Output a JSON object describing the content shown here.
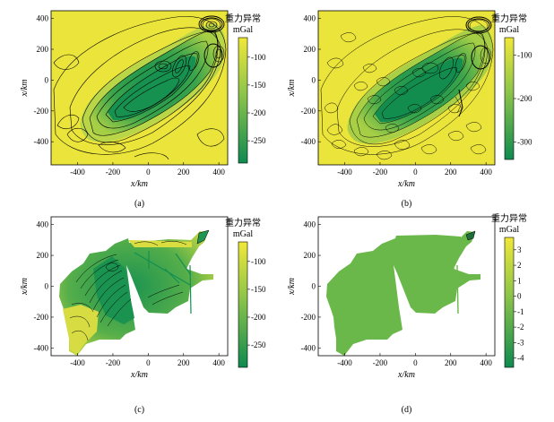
{
  "colors": {
    "high": "#ebe43a",
    "low": "#138f52",
    "mid": "#6bb84a",
    "frame": "#000000"
  },
  "chart_data": [
    {
      "type": "heatmap",
      "panel_label": "(a)",
      "xlabel": "x/km",
      "ylabel": "x/km",
      "xticks": [
        "-400",
        "-200",
        "0",
        "200",
        "400"
      ],
      "yticks": [
        "400",
        "200",
        "0",
        "-200",
        "-400"
      ],
      "xlim": [
        -550,
        450
      ],
      "ylim": [
        -550,
        450
      ],
      "colorbar": {
        "title": "重力异常",
        "unit": "mGal",
        "ticks": [
          "-100",
          "-150",
          "-200",
          "-250"
        ],
        "range": [
          -290,
          -65
        ]
      }
    },
    {
      "type": "heatmap",
      "panel_label": "(b)",
      "xlabel": "x/km",
      "ylabel": "x/km",
      "xticks": [
        "-400",
        "-200",
        "0",
        "200",
        "400"
      ],
      "yticks": [
        "400",
        "200",
        "0",
        "-200",
        "-400"
      ],
      "xlim": [
        -550,
        450
      ],
      "ylim": [
        -550,
        450
      ],
      "colorbar": {
        "title": "重力异常",
        "unit": "mGal",
        "ticks": [
          "-100",
          "-200",
          "-300"
        ],
        "range": [
          -340,
          -60
        ]
      }
    },
    {
      "type": "heatmap",
      "panel_label": "(c)",
      "xlabel": "x/km",
      "ylabel": "x/km",
      "xticks": [
        "-400",
        "-200",
        "0",
        "200",
        "400"
      ],
      "yticks": [
        "400",
        "200",
        "0",
        "-200",
        "-400"
      ],
      "xlim": [
        -550,
        450
      ],
      "ylim": [
        -450,
        450
      ],
      "colorbar": {
        "title": "重力异常",
        "unit": "mGal",
        "ticks": [
          "-100",
          "-150",
          "-200",
          "-250"
        ],
        "range": [
          -290,
          -65
        ]
      }
    },
    {
      "type": "heatmap",
      "panel_label": "(d)",
      "xlabel": "x/km",
      "ylabel": "x/km",
      "xticks": [
        "-400",
        "-200",
        "0",
        "200",
        "400"
      ],
      "yticks": [
        "400",
        "200",
        "0",
        "-200",
        "-400"
      ],
      "xlim": [
        -550,
        450
      ],
      "ylim": [
        -450,
        450
      ],
      "colorbar": {
        "title": "重力异常",
        "unit": "mGal",
        "ticks": [
          "3",
          "2",
          "1",
          "0",
          "-1",
          "-2",
          "-3",
          "-4"
        ],
        "range": [
          -4.6,
          3.8
        ]
      }
    }
  ]
}
